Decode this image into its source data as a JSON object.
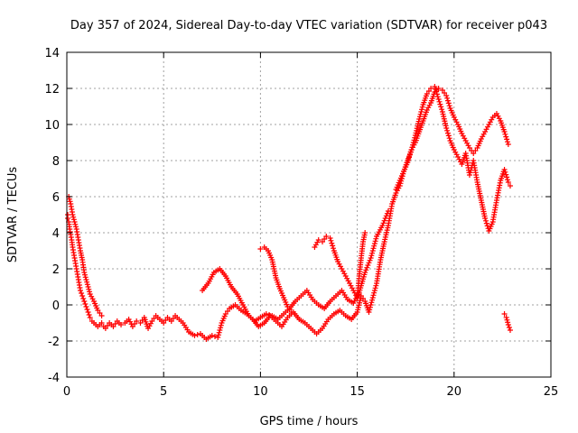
{
  "chart_data": {
    "type": "scatter",
    "title": "Day 357 of 2024, Sidereal Day-to-day VTEC variation (SDTVAR) for receiver p043",
    "xlabel": "GPS time / hours",
    "ylabel": "SDTVAR / TECUs",
    "xlim": [
      0,
      25
    ],
    "ylim": [
      -4,
      14
    ],
    "x_ticks": [
      0,
      5,
      10,
      15,
      20,
      25
    ],
    "y_ticks": [
      -4,
      -2,
      0,
      2,
      4,
      6,
      8,
      10,
      12,
      14
    ],
    "grid": true,
    "marker": "+",
    "colors": {
      "series": "#ff0000",
      "grid": "#a0a0a0",
      "axis": "#000000"
    },
    "series": [
      {
        "name": "SDTVAR",
        "x": [
          0.0,
          0.05,
          0.1,
          0.15,
          0.2,
          0.25,
          0.3,
          0.35,
          0.4,
          0.45,
          0.5,
          0.55,
          0.6,
          0.65,
          0.7,
          0.8,
          0.9,
          1.0,
          1.1,
          1.2,
          1.3,
          1.4,
          1.5,
          1.6,
          1.7,
          1.8,
          1.9,
          2.0,
          2.2,
          2.4,
          2.6,
          2.8,
          3.0,
          3.2,
          3.4,
          3.6,
          3.8,
          4.0,
          4.2,
          4.4,
          4.6,
          4.8,
          5.0,
          5.2,
          5.4,
          5.6,
          5.8,
          6.0,
          6.3,
          6.6,
          6.9,
          7.2,
          7.5,
          7.8,
          8.0,
          8.2,
          8.4,
          8.7,
          9.0,
          9.3,
          9.6,
          9.9,
          10.2,
          10.5,
          10.8,
          11.1,
          11.4,
          11.7,
          12.0,
          12.3,
          12.6,
          12.9,
          13.2,
          13.5,
          13.8,
          14.1,
          14.4,
          14.7,
          15.0,
          15.2,
          15.4,
          15.6,
          15.8,
          16.0,
          16.2,
          16.4,
          16.6,
          16.8,
          17.0,
          17.2,
          17.4,
          17.6,
          17.8,
          18.0,
          18.2,
          18.4,
          18.6,
          18.8,
          19.0,
          19.2,
          19.4,
          19.6,
          19.8,
          20.0,
          20.2,
          20.4,
          20.6,
          20.8,
          21.0,
          21.2,
          21.4,
          21.6,
          21.8,
          22.0,
          22.2,
          22.4,
          22.6,
          22.8,
          22.9,
          0.1,
          0.2,
          0.3,
          0.4,
          0.5,
          0.6,
          0.7,
          0.8,
          0.9,
          1.0,
          1.1,
          1.2,
          1.4,
          1.6,
          1.8,
          7.0,
          7.3,
          7.6,
          7.9,
          8.2,
          8.5,
          8.8,
          9.1,
          9.4,
          9.7,
          10.0,
          10.3,
          10.6,
          10.9,
          11.2,
          11.5,
          11.8,
          12.1,
          12.4,
          12.7,
          13.0,
          13.3,
          13.6,
          13.9,
          14.2,
          14.5,
          14.8,
          15.1,
          15.4,
          15.7,
          16.0,
          16.3,
          16.6,
          10.0,
          10.2,
          10.4,
          10.6,
          10.8,
          11.0,
          11.2,
          11.4,
          11.6,
          12.8,
          13.0,
          13.2,
          13.4,
          13.6,
          13.8,
          14.0,
          14.2,
          14.4,
          14.6,
          14.8,
          15.0,
          15.1,
          15.2,
          15.3,
          15.4,
          17.0,
          17.2,
          17.4,
          17.6,
          17.8,
          18.0,
          18.2,
          18.4,
          18.6,
          18.8,
          19.0,
          19.2,
          19.4,
          19.6,
          19.8,
          20.0,
          20.2,
          20.4,
          20.6,
          20.8,
          21.0,
          21.2,
          21.4,
          21.6,
          21.8,
          22.0,
          22.2,
          22.4,
          22.6,
          22.8,
          22.6,
          22.7,
          22.8,
          22.9
        ],
        "y": [
          5.0,
          4.8,
          4.6,
          4.2,
          3.9,
          3.6,
          3.2,
          2.9,
          2.6,
          2.3,
          2.0,
          1.7,
          1.4,
          1.1,
          0.8,
          0.5,
          0.2,
          -0.1,
          -0.4,
          -0.7,
          -0.9,
          -1.0,
          -1.1,
          -1.2,
          -1.1,
          -1.0,
          -1.2,
          -1.3,
          -1.0,
          -1.2,
          -0.9,
          -1.1,
          -1.0,
          -0.8,
          -1.2,
          -0.9,
          -1.0,
          -0.7,
          -1.3,
          -0.9,
          -0.6,
          -0.8,
          -1.0,
          -0.7,
          -0.9,
          -0.6,
          -0.8,
          -1.0,
          -1.5,
          -1.7,
          -1.6,
          -1.9,
          -1.7,
          -1.8,
          -1.0,
          -0.5,
          -0.2,
          0.0,
          -0.3,
          -0.5,
          -0.8,
          -1.2,
          -1.0,
          -0.6,
          -0.9,
          -1.2,
          -0.7,
          -0.4,
          -0.8,
          -1.0,
          -1.3,
          -1.6,
          -1.3,
          -0.8,
          -0.5,
          -0.3,
          -0.6,
          -0.8,
          -0.4,
          0.5,
          0.2,
          -0.4,
          0.4,
          1.2,
          2.5,
          3.5,
          4.4,
          5.6,
          6.2,
          6.6,
          7.4,
          7.9,
          8.6,
          9.4,
          10.3,
          11.1,
          11.7,
          12.0,
          12.1,
          11.4,
          10.7,
          9.8,
          9.1,
          8.6,
          8.2,
          7.8,
          8.4,
          7.2,
          8.0,
          6.8,
          5.8,
          4.8,
          4.1,
          4.6,
          5.8,
          6.9,
          7.5,
          6.8,
          6.6,
          6.0,
          5.6,
          5.0,
          4.6,
          4.2,
          3.6,
          3.0,
          2.5,
          1.8,
          1.4,
          1.0,
          0.6,
          0.2,
          -0.3,
          -0.6,
          0.8,
          1.2,
          1.8,
          2.0,
          1.6,
          1.0,
          0.6,
          0.0,
          -0.6,
          -0.9,
          -0.7,
          -0.5,
          -0.6,
          -0.8,
          -0.5,
          -0.2,
          0.2,
          0.5,
          0.8,
          0.3,
          0.0,
          -0.2,
          0.2,
          0.5,
          0.8,
          0.3,
          0.1,
          0.7,
          1.8,
          2.6,
          3.8,
          4.4,
          5.2,
          3.1,
          3.2,
          3.0,
          2.5,
          1.5,
          0.9,
          0.4,
          -0.1,
          -0.4,
          3.2,
          3.6,
          3.5,
          3.8,
          3.7,
          3.0,
          2.4,
          2.0,
          1.6,
          1.2,
          0.8,
          0.4,
          1.6,
          2.6,
          3.5,
          4.0,
          6.4,
          6.9,
          7.4,
          8.0,
          8.6,
          9.0,
          9.6,
          10.2,
          10.8,
          11.2,
          11.8,
          12.0,
          11.9,
          11.6,
          10.9,
          10.4,
          10.0,
          9.5,
          9.1,
          8.7,
          8.4,
          8.7,
          9.2,
          9.6,
          10.0,
          10.4,
          10.6,
          10.2,
          9.6,
          8.9,
          -0.5,
          -0.7,
          -1.1,
          -1.4
        ]
      }
    ]
  }
}
